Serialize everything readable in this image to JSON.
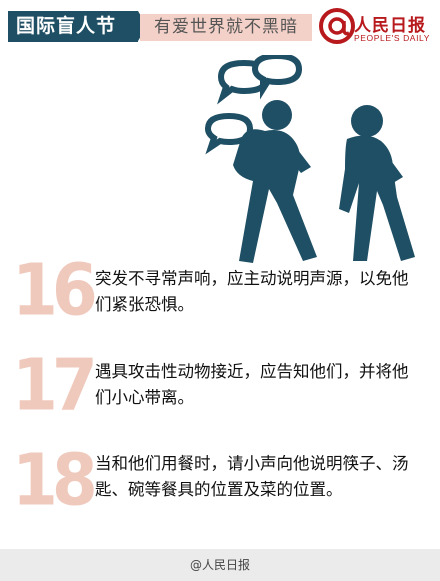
{
  "header": {
    "tag": "国际盲人节",
    "slogan": "有爱世界就不黑暗",
    "logo": {
      "name": "人民日报",
      "english": "PEOPLE'S DAILY",
      "icon": "at-sign-icon"
    }
  },
  "illustration": {
    "icon": "two-walking-people-speech-bubbles-icon"
  },
  "tips": [
    {
      "number": "16",
      "text": "突发不寻常声响，应主动说明声源，以免他们紧张恐惧。"
    },
    {
      "number": "17",
      "text": "遇具攻击性动物接近，应告知他们，并将他们小心带离。"
    },
    {
      "number": "18",
      "text": "当和他们用餐时，请小声向他说明筷子、汤匙、碗等餐具的位置及菜的位置。"
    }
  ],
  "footer": {
    "watermark": "@人民日报"
  },
  "colors": {
    "accent": "#1f4f64",
    "number": "#f0c9bd",
    "brand": "#b8191c",
    "slogan_bg": "#f3d1c8"
  }
}
